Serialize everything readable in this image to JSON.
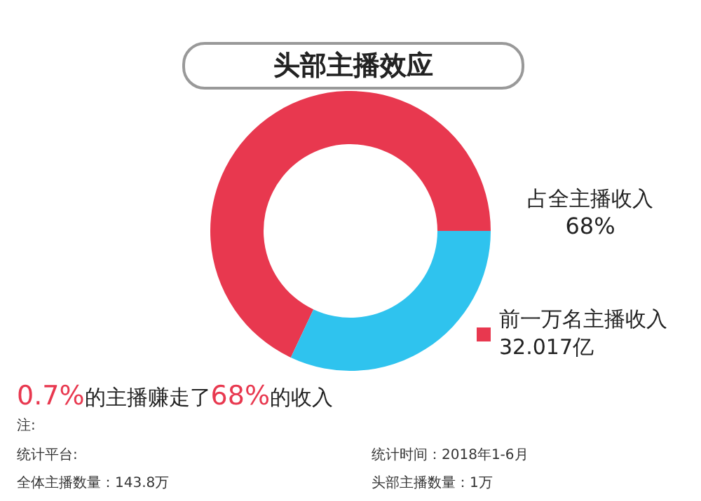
{
  "chart_data": {
    "type": "donut",
    "title": "头部主播效应",
    "categories": [
      "占全主播收入",
      null
    ],
    "values": [
      68,
      32
    ],
    "colors": [
      "#e8384f",
      "#2fc3ee"
    ],
    "value_labels": [
      "68%",
      null
    ],
    "legend": false,
    "annotations": [
      "前一万名主播收入32.017亿",
      "0.7%的主播赚走了68%的收入",
      "注:",
      "统计平台:",
      "统计时间：2018年1-6月",
      "全体主播数量：143.8万",
      "头部主播数量：1万"
    ]
  }
}
